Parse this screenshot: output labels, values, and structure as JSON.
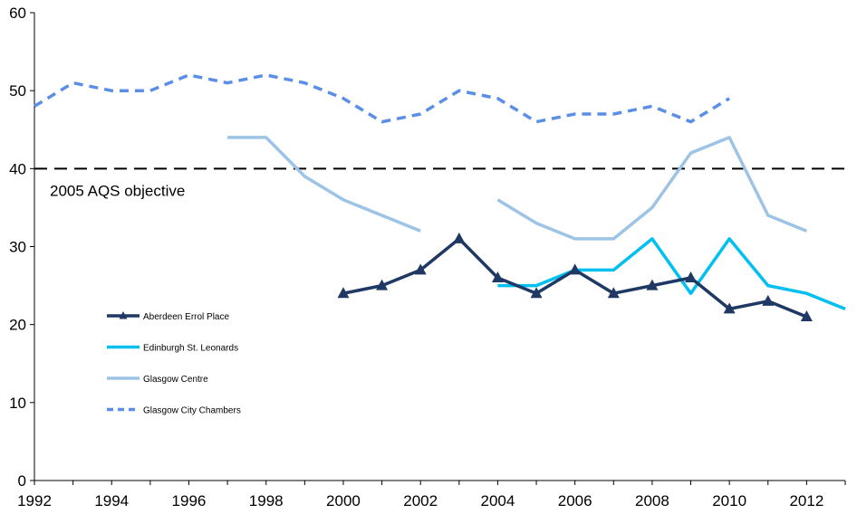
{
  "chart_data": {
    "type": "line",
    "title": "",
    "xlabel": "",
    "ylabel": "",
    "xlim": [
      1992,
      2013
    ],
    "ylim": [
      0,
      60
    ],
    "x_ticks": [
      1992,
      1994,
      1996,
      1998,
      2000,
      2002,
      2004,
      2006,
      2008,
      2010,
      2012
    ],
    "y_ticks": [
      0,
      10,
      20,
      30,
      40,
      50,
      60
    ],
    "grid": false,
    "legend_position": "left",
    "reference_line": {
      "value": 40,
      "label": "2005 AQS objective",
      "color": "#000000"
    },
    "series": [
      {
        "name": "Aberdeen Errol Place",
        "color": "#1f3864",
        "style": "solid",
        "marker": "triangle",
        "points": [
          [
            2000,
            24
          ],
          [
            2001,
            25
          ],
          [
            2002,
            27
          ],
          [
            2003,
            31
          ],
          [
            2004,
            26
          ],
          [
            2005,
            24
          ],
          [
            2006,
            27
          ],
          [
            2007,
            24
          ],
          [
            2008,
            25
          ],
          [
            2009,
            26
          ],
          [
            2010,
            22
          ],
          [
            2011,
            23
          ],
          [
            2012,
            21
          ]
        ]
      },
      {
        "name": "Edinburgh St. Leonards",
        "color": "#00c0f0",
        "style": "solid",
        "marker": "none",
        "points": [
          [
            2004,
            25
          ],
          [
            2005,
            25
          ],
          [
            2006,
            27
          ],
          [
            2007,
            27
          ],
          [
            2008,
            31
          ],
          [
            2009,
            24
          ],
          [
            2010,
            31
          ],
          [
            2011,
            25
          ],
          [
            2012,
            24
          ],
          [
            2013,
            22
          ]
        ]
      },
      {
        "name": "Glasgow Centre",
        "color": "#9dc3e6",
        "style": "solid",
        "marker": "none",
        "points": [
          [
            1997,
            44
          ],
          [
            1998,
            44
          ],
          [
            1999,
            39
          ],
          [
            2000,
            36
          ],
          [
            2001,
            34
          ],
          [
            2002,
            32
          ],
          null,
          [
            2004,
            36
          ],
          [
            2005,
            33
          ],
          [
            2006,
            31
          ],
          [
            2007,
            31
          ],
          [
            2008,
            35
          ],
          [
            2009,
            42
          ],
          [
            2010,
            44
          ],
          [
            2011,
            34
          ],
          [
            2012,
            32
          ]
        ]
      },
      {
        "name": "Glasgow City Chambers",
        "color": "#5b8ee6",
        "style": "dashed",
        "marker": "none",
        "points": [
          [
            1992,
            48
          ],
          [
            1993,
            51
          ],
          [
            1994,
            50
          ],
          [
            1995,
            50
          ],
          [
            1996,
            52
          ],
          [
            1997,
            51
          ],
          [
            1998,
            52
          ],
          [
            1999,
            51
          ],
          [
            2000,
            49
          ],
          [
            2001,
            46
          ],
          [
            2002,
            47
          ],
          [
            2003,
            50
          ],
          [
            2004,
            49
          ],
          [
            2005,
            46
          ],
          [
            2006,
            47
          ],
          [
            2007,
            47
          ],
          [
            2008,
            48
          ],
          [
            2009,
            46
          ],
          [
            2010,
            49
          ]
        ]
      }
    ]
  }
}
